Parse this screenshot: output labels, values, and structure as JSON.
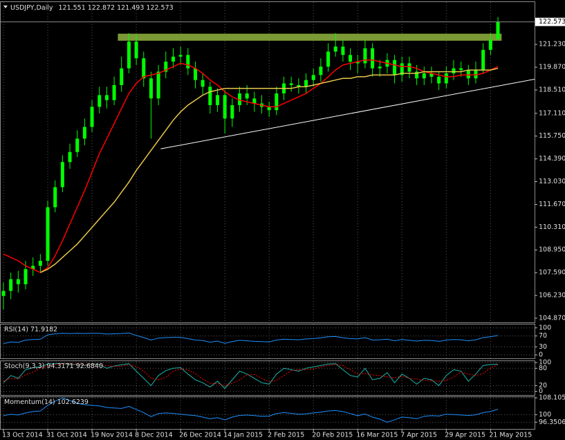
{
  "chart_data": [
    {
      "type": "candlestick",
      "title": "USDJPY,Daily",
      "readout": "121.551 122.872 121.493 122.573",
      "color": "#00ff00",
      "categories": [
        "13 Oct 2014",
        null,
        null,
        null,
        null,
        null,
        "31 Oct 2014",
        null,
        null,
        null,
        null,
        null,
        "19 Nov 2014",
        null,
        null,
        null,
        null,
        null,
        "8 Dec 2014",
        null,
        null,
        null,
        null,
        null,
        "26 Dec 2014",
        null,
        null,
        null,
        null,
        null,
        "14 Jan 2015",
        null,
        null,
        null,
        null,
        null,
        "2 Feb 2015",
        null,
        null,
        null,
        null,
        null,
        "20 Feb 2015",
        null,
        null,
        null,
        null,
        null,
        "16 Mar 2015",
        null,
        null,
        null,
        null,
        null,
        "7 Apr 2015",
        null,
        null,
        null,
        null,
        null,
        "29 Apr 2015",
        null,
        null,
        null,
        null,
        null,
        "21 May 2015",
        null
      ],
      "open": [
        106.2,
        106.5,
        107.2,
        106.9,
        107.8,
        108.0,
        108.3,
        111.5,
        112.7,
        114.2,
        114.8,
        115.6,
        116.3,
        117.5,
        118.2,
        117.9,
        118.8,
        119.8,
        121.4,
        120.4,
        119.2,
        118.0,
        119.6,
        120.2,
        120.5,
        120.6,
        119.8,
        119.1,
        118.7,
        117.6,
        118.2,
        116.8,
        117.6,
        118.3,
        118.0,
        117.7,
        117.5,
        117.3,
        118.3,
        118.9,
        118.8,
        118.7,
        119.1,
        119.4,
        119.9,
        120.8,
        121.1,
        120.6,
        120.2,
        120.1,
        121.0,
        119.8,
        119.9,
        120.3,
        119.4,
        120.1,
        119.6,
        119.2,
        119.5,
        119.3,
        118.9,
        119.5,
        119.8,
        119.7,
        119.2,
        119.7,
        120.9,
        121.551
      ],
      "high": [
        107.0,
        107.6,
        107.7,
        108.3,
        108.5,
        108.7,
        111.9,
        113.1,
        114.6,
        115.3,
        116.1,
        116.8,
        117.9,
        118.7,
        118.7,
        119.3,
        120.5,
        121.9,
        121.8,
        120.8,
        119.6,
        120.0,
        120.8,
        121.0,
        121.1,
        121.0,
        120.2,
        119.5,
        119.0,
        118.6,
        118.5,
        118.0,
        118.7,
        118.8,
        118.4,
        118.2,
        117.8,
        118.7,
        119.3,
        119.3,
        119.2,
        119.5,
        119.8,
        120.4,
        121.3,
        121.9,
        121.5,
        121.0,
        120.6,
        121.5,
        121.3,
        120.3,
        120.7,
        120.6,
        120.5,
        120.5,
        120.0,
        119.9,
        119.9,
        119.6,
        119.9,
        120.3,
        120.2,
        120.0,
        120.2,
        121.3,
        121.9,
        122.872
      ],
      "low": [
        105.4,
        106.0,
        106.4,
        106.6,
        107.4,
        107.6,
        108.0,
        111.2,
        112.4,
        113.8,
        114.5,
        115.2,
        116.0,
        117.1,
        117.4,
        117.6,
        118.4,
        119.5,
        120.0,
        118.7,
        115.6,
        117.6,
        119.2,
        119.8,
        120.0,
        119.4,
        118.6,
        118.2,
        117.1,
        117.2,
        115.9,
        116.3,
        117.2,
        117.6,
        117.2,
        117.1,
        116.9,
        117.0,
        117.9,
        118.4,
        118.3,
        118.3,
        118.7,
        119.0,
        119.6,
        120.5,
        120.2,
        119.7,
        119.5,
        119.8,
        119.3,
        119.3,
        119.5,
        118.9,
        119.0,
        119.2,
        118.8,
        118.8,
        118.9,
        118.5,
        118.6,
        119.1,
        119.3,
        118.8,
        118.9,
        119.5,
        120.6,
        121.493
      ],
      "close": [
        106.5,
        107.2,
        106.9,
        107.8,
        108.0,
        108.3,
        111.5,
        112.7,
        114.2,
        114.8,
        115.6,
        116.3,
        117.5,
        118.2,
        117.9,
        118.8,
        119.8,
        121.4,
        120.4,
        119.2,
        118.0,
        119.6,
        120.2,
        120.5,
        120.6,
        119.8,
        119.1,
        118.7,
        117.6,
        118.2,
        116.8,
        117.6,
        118.3,
        118.0,
        117.7,
        117.5,
        117.3,
        118.3,
        118.9,
        118.8,
        118.7,
        119.1,
        119.4,
        119.9,
        120.8,
        121.1,
        120.6,
        120.2,
        120.1,
        121.0,
        119.8,
        119.9,
        120.3,
        119.4,
        120.1,
        119.6,
        119.2,
        119.5,
        119.3,
        118.9,
        119.5,
        119.8,
        119.7,
        119.2,
        119.7,
        120.9,
        121.5,
        122.573
      ],
      "series": [
        {
          "color": "#ff0000",
          "values": [
            108.7,
            108.5,
            108.3,
            108.0,
            107.8,
            107.6,
            107.9,
            108.6,
            109.5,
            110.5,
            111.5,
            112.5,
            113.6,
            114.7,
            115.6,
            116.5,
            117.4,
            118.3,
            118.9,
            119.3,
            119.4,
            119.5,
            119.7,
            119.9,
            120.1,
            120.0,
            119.8,
            119.5,
            119.1,
            118.8,
            118.4,
            118.1,
            117.9,
            117.8,
            117.7,
            117.6,
            117.5,
            117.5,
            117.7,
            117.9,
            118.1,
            118.3,
            118.6,
            118.9,
            119.3,
            119.7,
            120.0,
            120.1,
            120.2,
            120.3,
            120.3,
            120.2,
            120.1,
            120.0,
            119.9,
            119.9,
            119.8,
            119.6,
            119.5,
            119.4,
            119.3,
            119.3,
            119.4,
            119.4,
            119.4,
            119.5,
            119.7,
            119.9
          ]
        },
        {
          "color": "#e8c84a",
          "values": [
            null,
            null,
            null,
            null,
            null,
            107.6,
            107.8,
            108.1,
            108.5,
            108.9,
            109.3,
            109.8,
            110.3,
            110.8,
            111.3,
            111.8,
            112.4,
            113.0,
            113.7,
            114.3,
            114.9,
            115.5,
            116.1,
            116.7,
            117.2,
            117.6,
            117.9,
            118.2,
            118.4,
            118.5,
            118.6,
            118.6,
            118.6,
            118.6,
            118.6,
            118.6,
            118.6,
            118.6,
            118.6,
            118.6,
            118.7,
            118.7,
            118.8,
            118.9,
            119.0,
            119.1,
            119.2,
            119.2,
            119.3,
            119.3,
            119.4,
            119.4,
            119.4,
            119.4,
            119.5,
            119.5,
            119.5,
            119.6,
            119.6,
            119.6,
            119.6,
            119.6,
            119.6,
            119.7,
            119.7,
            119.7,
            119.7,
            119.8
          ]
        }
      ],
      "zone": {
        "x": [
          15.5,
          67.5
        ],
        "y": [
          121.45,
          121.87
        ],
        "color": "#7b9a36"
      },
      "trendline": {
        "x": [
          21.3,
          72
        ],
        "y": [
          114.99,
          119.15
        ],
        "color": "#ffffff"
      },
      "ylim": [
        104.62,
        123.8
      ],
      "yticks": [
        {
          "value": 121.23,
          "label": "121.230"
        },
        {
          "value": 119.87,
          "label": "119.870"
        },
        {
          "value": 118.51,
          "label": "118.510"
        },
        {
          "value": 117.11,
          "label": "117.110"
        },
        {
          "value": 115.75,
          "label": "115.750"
        },
        {
          "value": 114.39,
          "label": "114.390"
        },
        {
          "value": 113.03,
          "label": "113.030"
        },
        {
          "value": 111.67,
          "label": "111.670"
        },
        {
          "value": 110.31,
          "label": "110.310"
        },
        {
          "value": 108.95,
          "label": "108.950"
        },
        {
          "value": 107.59,
          "label": "107.590"
        },
        {
          "value": 106.23,
          "label": "106.230"
        },
        {
          "value": 104.87,
          "label": "104.870"
        }
      ],
      "grid": true
    },
    {
      "type": "line",
      "title": "RSI(14)",
      "readout": "71.9182",
      "ylim": [
        -12.8,
        115
      ],
      "yticks": [
        100,
        70,
        30,
        0
      ],
      "grid": true,
      "series": [
        {
          "color": "#1e90ff",
          "values": [
            42,
            48,
            46,
            55,
            57,
            58,
            74,
            78,
            80,
            79,
            80,
            79,
            80,
            80,
            77,
            78,
            79,
            81,
            72,
            64,
            55,
            62,
            64,
            65,
            65,
            60,
            55,
            53,
            47,
            51,
            43,
            49,
            54,
            52,
            50,
            49,
            48,
            55,
            58,
            57,
            56,
            59,
            60,
            63,
            67,
            68,
            63,
            60,
            59,
            64,
            55,
            56,
            58,
            52,
            57,
            54,
            51,
            54,
            53,
            50,
            55,
            57,
            56,
            52,
            56,
            64,
            67,
            71.9182
          ]
        }
      ]
    },
    {
      "type": "line",
      "title": "Stoch(9,3,3)",
      "readout": "94.3171 92.6840",
      "ylim": [
        -12.7,
        107.2
      ],
      "yticks": [
        100,
        80,
        20,
        0
      ],
      "grid": true,
      "series": [
        {
          "color": "#20b2aa",
          "values": [
            30,
            55,
            45,
            75,
            82,
            85,
            95,
            96,
            97,
            92,
            94,
            90,
            95,
            93,
            80,
            88,
            92,
            96,
            70,
            45,
            20,
            55,
            72,
            80,
            82,
            60,
            40,
            30,
            15,
            35,
            10,
            40,
            70,
            60,
            45,
            30,
            25,
            60,
            80,
            75,
            70,
            80,
            85,
            90,
            95,
            96,
            75,
            55,
            50,
            80,
            40,
            45,
            65,
            30,
            60,
            45,
            25,
            45,
            40,
            20,
            55,
            75,
            70,
            35,
            60,
            90,
            93,
            94.3171
          ]
        },
        {
          "color": "#ff0000",
          "dash": true,
          "values": [
            35,
            45,
            43,
            58,
            67,
            81,
            87,
            92,
            96,
            95,
            94,
            92,
            93,
            93,
            89,
            87,
            87,
            92,
            86,
            70,
            45,
            40,
            49,
            69,
            78,
            74,
            61,
            43,
            28,
            27,
            20,
            28,
            40,
            57,
            58,
            45,
            33,
            38,
            55,
            72,
            75,
            75,
            78,
            85,
            90,
            94,
            89,
            75,
            60,
            62,
            57,
            55,
            50,
            47,
            52,
            45,
            43,
            38,
            37,
            35,
            38,
            50,
            67,
            60,
            55,
            62,
            81,
            92.684
          ]
        }
      ]
    },
    {
      "type": "line",
      "title": "Momentum(14)",
      "readout": "102.6239",
      "ylim": [
        93.1,
        108.8
      ],
      "yticks": [
        108.105,
        100,
        96.3506
      ],
      "grid": true,
      "series": [
        {
          "color": "#1e90ff",
          "values": [
            99.5,
            100.2,
            99.8,
            100.8,
            101.5,
            101.8,
            104.5,
            106.5,
            108.105,
            106.8,
            105.5,
            104.8,
            104.5,
            104.2,
            103.5,
            103.2,
            103.0,
            104.0,
            102.5,
            101.0,
            99.0,
            100.5,
            100.8,
            100.6,
            100.2,
            99.8,
            99.5,
            98.8,
            98.0,
            98.5,
            97.5,
            98.8,
            99.6,
            99.8,
            99.5,
            99.2,
            99.3,
            100.5,
            101.0,
            100.6,
            100.2,
            100.4,
            100.8,
            101.2,
            101.8,
            102.0,
            101.5,
            100.5,
            99.5,
            100.3,
            98.8,
            97.8,
            96.3506,
            97.5,
            98.8,
            98.5,
            98.0,
            99.2,
            99.5,
            99.3,
            100.2,
            100.0,
            99.8,
            99.6,
            99.9,
            101.0,
            101.5,
            102.6239
          ]
        }
      ]
    }
  ]
}
